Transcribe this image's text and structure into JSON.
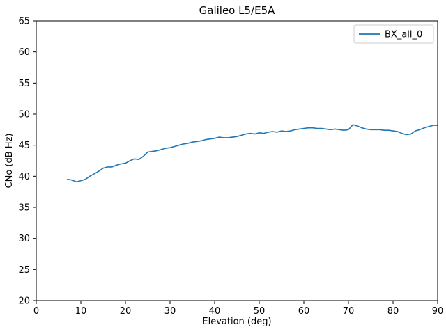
{
  "chart_data": {
    "type": "line",
    "title": "Galileo L5/E5A",
    "xlabel": "Elevation (deg)",
    "ylabel": "CNo (dB Hz)",
    "xlim": [
      0,
      90
    ],
    "ylim": [
      20,
      65
    ],
    "xticks": [
      0,
      10,
      20,
      30,
      40,
      50,
      60,
      70,
      80,
      90
    ],
    "yticks": [
      20,
      25,
      30,
      35,
      40,
      45,
      50,
      55,
      60,
      65
    ],
    "grid": false,
    "legend": {
      "position": "upper right",
      "entries": [
        "BX_all_0"
      ]
    },
    "series": [
      {
        "name": "BX_all_0",
        "color": "#1f77b4",
        "x": [
          7,
          8,
          9,
          10,
          11,
          12,
          13,
          14,
          15,
          16,
          17,
          18,
          19,
          20,
          21,
          22,
          23,
          24,
          25,
          26,
          27,
          28,
          29,
          30,
          31,
          32,
          33,
          34,
          35,
          36,
          37,
          38,
          39,
          40,
          41,
          42,
          43,
          44,
          45,
          46,
          47,
          48,
          49,
          50,
          51,
          52,
          53,
          54,
          55,
          56,
          57,
          58,
          59,
          60,
          61,
          62,
          63,
          64,
          65,
          66,
          67,
          68,
          69,
          70,
          71,
          72,
          73,
          74,
          75,
          76,
          77,
          78,
          79,
          80,
          81,
          82,
          83,
          84,
          85,
          86,
          87,
          88,
          89,
          90
        ],
        "y": [
          39.5,
          39.4,
          39.1,
          39.3,
          39.5,
          40.0,
          40.4,
          40.8,
          41.3,
          41.5,
          41.5,
          41.8,
          42.0,
          42.1,
          42.5,
          42.8,
          42.7,
          43.2,
          43.9,
          44.0,
          44.1,
          44.3,
          44.5,
          44.6,
          44.8,
          45.0,
          45.2,
          45.3,
          45.5,
          45.6,
          45.7,
          45.9,
          46.0,
          46.1,
          46.3,
          46.2,
          46.2,
          46.3,
          46.4,
          46.6,
          46.8,
          46.9,
          46.8,
          47.0,
          46.9,
          47.1,
          47.2,
          47.1,
          47.3,
          47.2,
          47.3,
          47.5,
          47.6,
          47.7,
          47.8,
          47.8,
          47.7,
          47.7,
          47.6,
          47.5,
          47.6,
          47.5,
          47.4,
          47.5,
          48.3,
          48.1,
          47.8,
          47.6,
          47.5,
          47.5,
          47.5,
          47.4,
          47.4,
          47.3,
          47.2,
          46.9,
          46.7,
          46.8,
          47.3,
          47.5,
          47.8,
          48.0,
          48.2,
          48.2
        ]
      }
    ]
  }
}
